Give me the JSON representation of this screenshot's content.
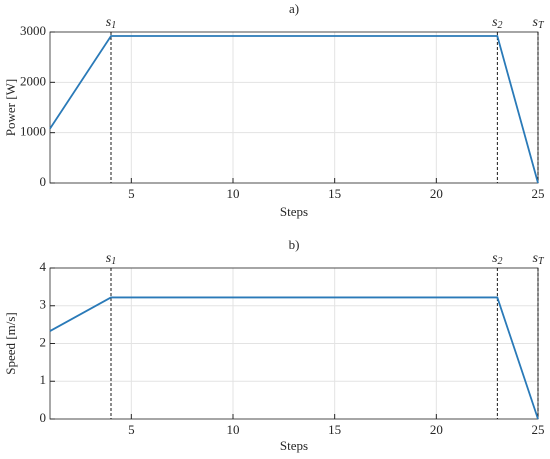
{
  "chart_data": [
    {
      "type": "line",
      "title": "a)",
      "xlabel": "Steps",
      "ylabel": "Power [W]",
      "xlim": [
        1,
        25
      ],
      "xticks": [
        5,
        10,
        15,
        20,
        25
      ],
      "ylim": [
        0,
        3000
      ],
      "yticks": [
        0,
        1000,
        2000,
        3000
      ],
      "grid": true,
      "series": [
        {
          "color": "#2a7ab8",
          "x": [
            1,
            4,
            23,
            25
          ],
          "values": [
            1080,
            2920,
            2920,
            0
          ]
        }
      ],
      "vlines": [
        {
          "x": 4,
          "text": "s",
          "subscript": "1"
        },
        {
          "x": 23,
          "text": "s",
          "subscript": "2"
        },
        {
          "x": 25,
          "text": "s",
          "subscript": "T"
        }
      ]
    },
    {
      "type": "line",
      "title": "b)",
      "xlabel": "Steps",
      "ylabel": "Speed [m/s]",
      "xlim": [
        1,
        25
      ],
      "xticks": [
        5,
        10,
        15,
        20,
        25
      ],
      "ylim": [
        0,
        4
      ],
      "yticks": [
        0,
        1,
        2,
        3,
        4
      ],
      "grid": true,
      "series": [
        {
          "color": "#2a7ab8",
          "x": [
            1,
            4,
            23,
            25
          ],
          "values": [
            2.33,
            3.22,
            3.22,
            0
          ]
        }
      ],
      "vlines": [
        {
          "x": 4,
          "text": "s",
          "subscript": "1"
        },
        {
          "x": 23,
          "text": "s",
          "subscript": "2"
        },
        {
          "x": 25,
          "text": "s",
          "subscript": "T"
        }
      ]
    }
  ]
}
